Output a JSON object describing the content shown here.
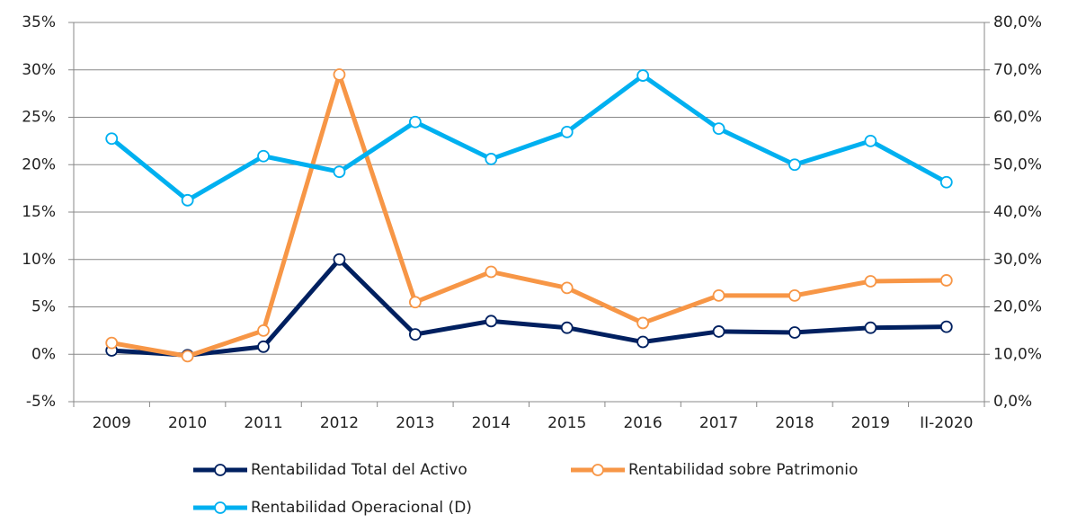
{
  "chart_data": {
    "type": "line",
    "categories": [
      "2009",
      "2010",
      "2011",
      "2012",
      "2013",
      "2014",
      "2015",
      "2016",
      "2017",
      "2018",
      "2019",
      "II-2020"
    ],
    "series": [
      {
        "name": "Rentabilidad Total del Activo",
        "color": "#002060",
        "values": [
          0.4,
          -0.1,
          0.8,
          10.0,
          2.1,
          3.5,
          2.8,
          1.3,
          2.4,
          2.3,
          2.8,
          2.9
        ]
      },
      {
        "name": "Rentabilidad sobre Patrimonio",
        "color": "#f79646",
        "values": [
          1.2,
          -0.2,
          2.5,
          29.5,
          5.5,
          8.7,
          7.0,
          3.3,
          6.2,
          6.2,
          7.7,
          7.8
        ]
      },
      {
        "name": "Rentabilidad Operacional (D)",
        "color": "#00b0f0",
        "axis": "y2",
        "values": [
          55.5,
          42.5,
          51.8,
          48.5,
          59.0,
          51.2,
          56.9,
          68.8,
          57.6,
          50.0,
          55.0,
          46.3
        ]
      }
    ],
    "ylim": [
      -5,
      35
    ],
    "yticks": [
      {
        "value": -5,
        "label": "-5%"
      },
      {
        "value": 0,
        "label": "0%"
      },
      {
        "value": 5,
        "label": "5%"
      },
      {
        "value": 10,
        "label": "10%"
      },
      {
        "value": 15,
        "label": "15%"
      },
      {
        "value": 20,
        "label": "20%"
      },
      {
        "value": 25,
        "label": "25%"
      },
      {
        "value": 30,
        "label": "30%"
      },
      {
        "value": 35,
        "label": "35%"
      }
    ],
    "y2lim": [
      0,
      80
    ],
    "y2ticks": [
      {
        "value": 0,
        "label": "0,0%"
      },
      {
        "value": 10,
        "label": "10,0%"
      },
      {
        "value": 20,
        "label": "20,0%"
      },
      {
        "value": 30,
        "label": "30,0%"
      },
      {
        "value": 40,
        "label": "40,0%"
      },
      {
        "value": 50,
        "label": "50,0%"
      },
      {
        "value": 60,
        "label": "60,0%"
      },
      {
        "value": 70,
        "label": "70,0%"
      },
      {
        "value": 80,
        "label": "80,0%"
      }
    ],
    "grid": true
  }
}
